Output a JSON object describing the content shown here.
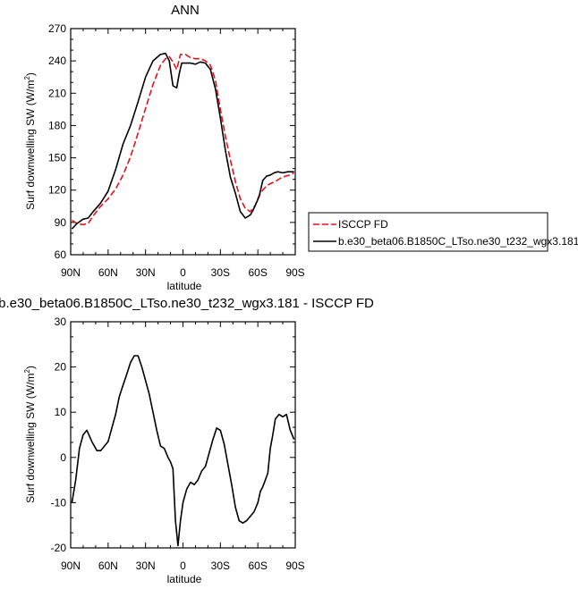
{
  "chart_data": [
    {
      "type": "line",
      "title": "ANN",
      "xlabel": "latitude",
      "ylabel": "Surf downwelling SW (W/m",
      "ylabel_sup": "2",
      "ylabel_close": ")",
      "xlim": [
        90,
        -90
      ],
      "ylim": [
        60,
        270
      ],
      "xticks": [
        90,
        60,
        30,
        0,
        -30,
        -60,
        -90
      ],
      "xtick_labels": [
        "90N",
        "60N",
        "30N",
        "0",
        "30S",
        "60S",
        "90S"
      ],
      "yticks": [
        60,
        90,
        120,
        150,
        180,
        210,
        240,
        270
      ],
      "ytick_labels": [
        "60",
        "90",
        "120",
        "150",
        "180",
        "210",
        "240",
        "270"
      ],
      "legend_position": "right, below plot",
      "series": [
        {
          "name": "ISCCP FD",
          "color": "#e8101a",
          "dash": "dashed",
          "x": [
            89,
            85,
            80,
            76,
            72,
            66,
            60,
            54,
            48,
            42,
            36,
            30,
            24,
            18,
            14,
            11,
            8,
            5,
            2,
            -2,
            -6,
            -10,
            -14,
            -18,
            -22,
            -26,
            -30,
            -34,
            -38,
            -42,
            -46,
            -50,
            -54,
            -58,
            -61,
            -64,
            -67,
            -70,
            -74,
            -78,
            -82,
            -86,
            -89
          ],
          "y": [
            92,
            89,
            88,
            89,
            96,
            105,
            112,
            121,
            134,
            151,
            173,
            196,
            218,
            236,
            242,
            244,
            239,
            232,
            246,
            246,
            243,
            242,
            242,
            240,
            236,
            222,
            195,
            170,
            148,
            128,
            112,
            103,
            100,
            106,
            115,
            120,
            124,
            126,
            128,
            131,
            133,
            134,
            136
          ]
        },
        {
          "name": "b.e30_beta06.B1850C_LTso.ne30_t232_wgx3.181",
          "color": "#000000",
          "dash": "solid",
          "x": [
            89,
            85,
            80,
            76,
            72,
            66,
            60,
            54,
            48,
            42,
            36,
            30,
            24,
            18,
            14,
            11,
            8,
            5,
            3,
            1,
            -2,
            -6,
            -10,
            -14,
            -18,
            -22,
            -26,
            -30,
            -34,
            -38,
            -42,
            -46,
            -50,
            -54,
            -56,
            -58,
            -61,
            -64,
            -67,
            -70,
            -73,
            -76,
            -80,
            -84,
            -89
          ],
          "y": [
            84,
            89,
            93,
            94,
            100,
            108,
            119,
            139,
            163,
            180,
            202,
            225,
            240,
            246,
            247,
            240,
            217,
            215,
            228,
            238,
            238,
            238,
            237,
            239,
            238,
            232,
            214,
            187,
            157,
            132,
            117,
            100,
            94,
            97,
            101,
            106,
            114,
            129,
            133,
            134,
            136,
            137,
            136,
            137,
            137
          ]
        }
      ]
    },
    {
      "type": "line",
      "title": "b.e30_beta06.B1850C_LTso.ne30_t232_wgx3.181 - ISCCP FD",
      "xlabel": "latitude",
      "ylabel": "Surf downwelling SW (W/m",
      "ylabel_sup": "2",
      "ylabel_close": ")",
      "xlim": [
        90,
        -90
      ],
      "ylim": [
        -20,
        30
      ],
      "xticks": [
        90,
        60,
        30,
        0,
        -30,
        -60,
        -90
      ],
      "xtick_labels": [
        "90N",
        "60N",
        "30N",
        "0",
        "30S",
        "60S",
        "90S"
      ],
      "yticks": [
        -20,
        -10,
        0,
        10,
        20,
        30
      ],
      "ytick_labels": [
        "-20",
        "-10",
        "0",
        "10",
        "20",
        "30"
      ],
      "series": [
        {
          "color": "#000000",
          "dash": "solid",
          "x": [
            89,
            86,
            83,
            80,
            77,
            73,
            69,
            66,
            63,
            60,
            57,
            54,
            51,
            48,
            45,
            42,
            39,
            36,
            33,
            30,
            27,
            24,
            21,
            18,
            15,
            12,
            10,
            8,
            6,
            4,
            2,
            0,
            -3,
            -6,
            -9,
            -12,
            -15,
            -18,
            -21,
            -24,
            -27,
            -30,
            -33,
            -36,
            -39,
            -42,
            -45,
            -48,
            -51,
            -54,
            -57,
            -60,
            -62,
            -64,
            -66,
            -68,
            -70,
            -72,
            -74,
            -77,
            -80,
            -83,
            -86,
            -89
          ],
          "y": [
            -10,
            -5,
            2,
            5,
            6,
            3.5,
            1.5,
            1.5,
            2.5,
            3.5,
            6.5,
            9.5,
            13.5,
            16,
            18.5,
            21,
            22.5,
            22.5,
            20,
            17,
            14,
            10,
            6,
            2.5,
            2,
            0,
            -1,
            -2.5,
            -14,
            -19.5,
            -14,
            -10,
            -7,
            -5.5,
            -6,
            -5,
            -3,
            -2,
            1,
            4,
            6.5,
            6,
            3,
            -1.5,
            -6,
            -11,
            -14,
            -14.5,
            -14,
            -13,
            -12,
            -10,
            -7.5,
            -6.5,
            -5,
            -3.5,
            2,
            5,
            8.5,
            9.5,
            9,
            9.5,
            6,
            4
          ]
        }
      ]
    }
  ]
}
